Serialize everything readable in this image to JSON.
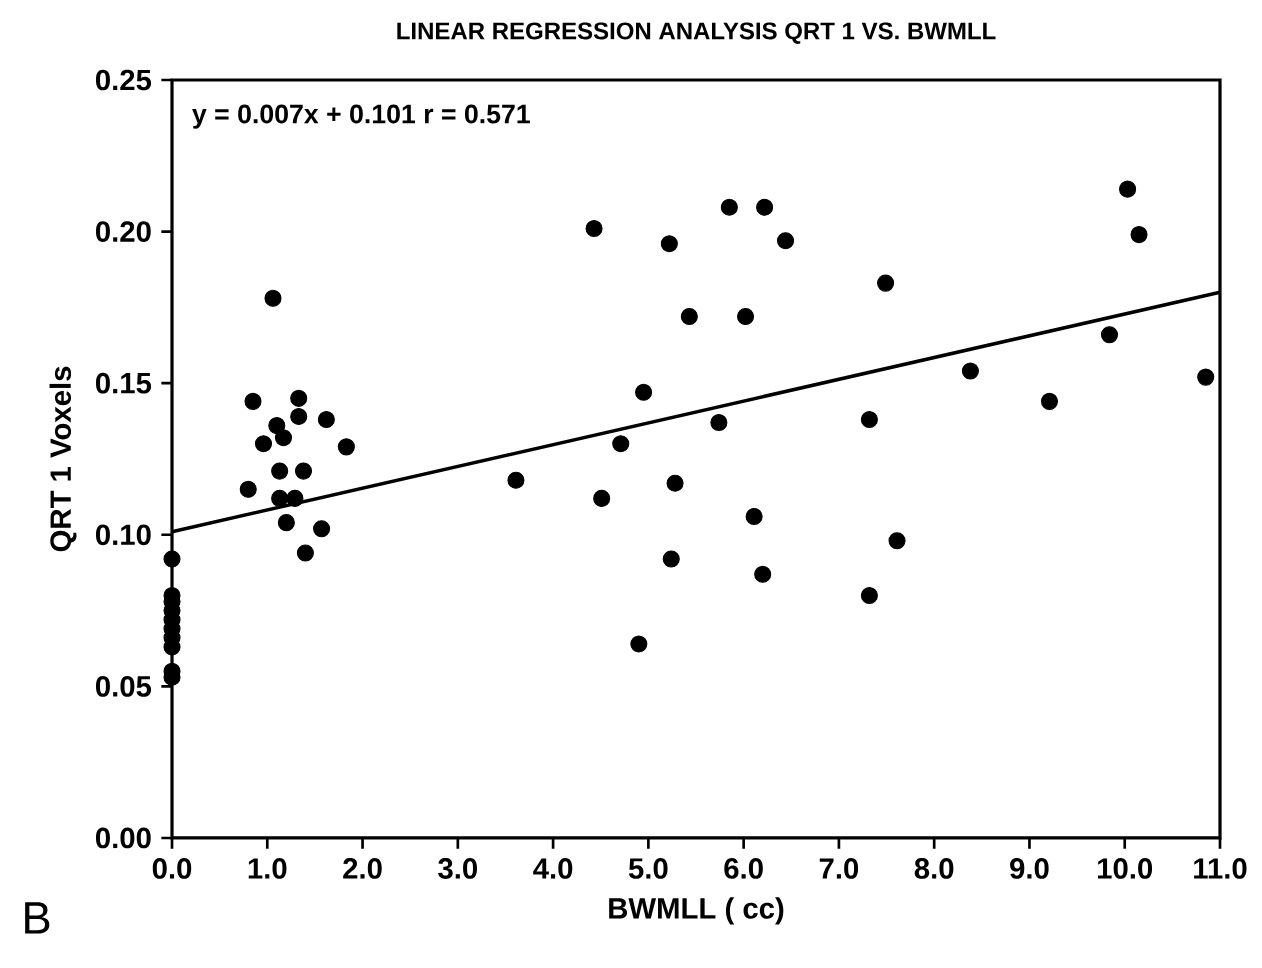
{
  "chart_data": {
    "type": "scatter",
    "title": "LINEAR REGRESSION ANALYSIS QRT 1  VS. BWMLL",
    "xlabel": "BWMLL ( cc)",
    "ylabel": "QRT 1 Voxels",
    "annotations": [
      "y = 0.007x + 0.101   r = 0.571",
      "B"
    ],
    "xlim": [
      0,
      11
    ],
    "ylim": [
      0,
      0.25
    ],
    "xticks": [
      {
        "value": 0,
        "label": "0.0"
      },
      {
        "value": 1,
        "label": "1.0"
      },
      {
        "value": 2,
        "label": "2.0"
      },
      {
        "value": 3,
        "label": "3.0"
      },
      {
        "value": 4,
        "label": "4.0"
      },
      {
        "value": 5,
        "label": "5.0"
      },
      {
        "value": 6,
        "label": "6.0"
      },
      {
        "value": 7,
        "label": "7.0"
      },
      {
        "value": 8,
        "label": "8.0"
      },
      {
        "value": 9,
        "label": "9.0"
      },
      {
        "value": 10,
        "label": "10.0"
      },
      {
        "value": 11,
        "label": "11.0"
      }
    ],
    "yticks": [
      {
        "value": 0,
        "label": "0.00"
      },
      {
        "value": 0.05,
        "label": "0.05"
      },
      {
        "value": 0.1,
        "label": "0.10"
      },
      {
        "value": 0.15,
        "label": "0.15"
      },
      {
        "value": 0.2,
        "label": "0.20"
      },
      {
        "value": 0.25,
        "label": "0.25"
      }
    ],
    "grid": false,
    "marker": "circle",
    "series": [
      {
        "color": "#000000",
        "x": [
          0,
          0,
          0,
          0,
          0,
          0,
          0,
          0,
          0,
          0,
          1.06,
          0.85,
          1.33,
          1.1,
          1.33,
          1.62,
          0.96,
          1.17,
          1.83,
          0.8,
          1.13,
          1.38,
          1.13,
          1.29,
          1.2,
          1.57,
          1.4,
          3.61,
          4.43,
          5.85,
          6.22,
          5.22,
          6.44,
          7.49,
          5.43,
          6.02,
          4.95,
          5.74,
          7.32,
          4.71,
          4.51,
          5.28,
          6.11,
          7.61,
          5.24,
          6.2,
          7.32,
          4.9,
          10.03,
          10.15,
          9.84,
          8.38,
          9.21,
          10.85
        ],
        "values": [
          0.092,
          0.08,
          0.078,
          0.075,
          0.072,
          0.069,
          0.066,
          0.063,
          0.055,
          0.053,
          0.178,
          0.144,
          0.145,
          0.136,
          0.139,
          0.138,
          0.13,
          0.132,
          0.129,
          0.115,
          0.121,
          0.121,
          0.112,
          0.112,
          0.104,
          0.102,
          0.094,
          0.118,
          0.201,
          0.208,
          0.208,
          0.196,
          0.197,
          0.183,
          0.172,
          0.172,
          0.147,
          0.137,
          0.138,
          0.13,
          0.112,
          0.117,
          0.106,
          0.098,
          0.092,
          0.087,
          0.08,
          0.064,
          0.214,
          0.199,
          0.166,
          0.154,
          0.144,
          0.152
        ]
      },
      {
        "type": "line",
        "color": "#000000",
        "marker": "none",
        "line_style": "solid",
        "x": [
          0,
          11
        ],
        "values": [
          0.101,
          0.18
        ]
      }
    ]
  }
}
